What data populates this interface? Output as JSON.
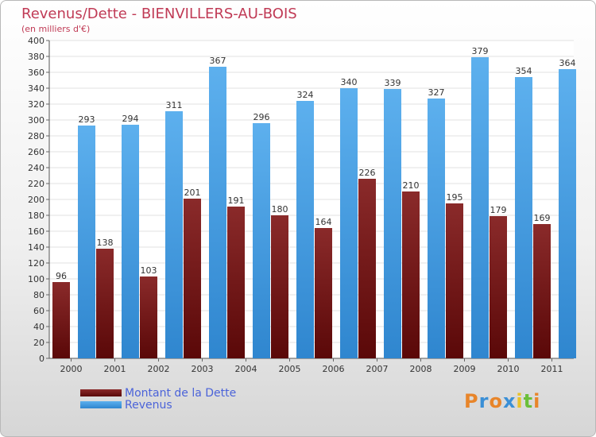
{
  "chart_data": {
    "type": "bar",
    "title": "Revenus/Dette - BIENVILLERS-AU-BOIS",
    "subtitle": "(en milliers d'€)",
    "categories": [
      "2000",
      "2001",
      "2002",
      "2003",
      "2004",
      "2005",
      "2006",
      "2007",
      "2008",
      "2009",
      "2010",
      "2011"
    ],
    "series": [
      {
        "name": "Montant de la Dette",
        "values": [
          96,
          138,
          103,
          201,
          191,
          180,
          164,
          226,
          210,
          195,
          179,
          169
        ],
        "color": "#7a1a1a"
      },
      {
        "name": "Revenus",
        "values": [
          293,
          294,
          311,
          367,
          296,
          324,
          340,
          339,
          327,
          379,
          354,
          364
        ],
        "color": "#4aa3e6"
      }
    ],
    "ylim": [
      0,
      400
    ],
    "ytick_step": 20,
    "yticks": [
      0,
      20,
      40,
      60,
      80,
      100,
      120,
      140,
      160,
      180,
      200,
      220,
      240,
      260,
      280,
      300,
      320,
      340,
      360,
      380,
      400
    ],
    "grid": true,
    "legend_position": "bottom-left"
  },
  "brand": {
    "text": "Proxiti",
    "letters": [
      {
        "char": "P",
        "color": "#e8852a"
      },
      {
        "char": "r",
        "color": "#3a8fd6"
      },
      {
        "char": "o",
        "color": "#e8852a"
      },
      {
        "char": "x",
        "color": "#3a8fd6"
      },
      {
        "char": "i",
        "color": "#e8c22a"
      },
      {
        "char": "t",
        "color": "#6bbf3a"
      },
      {
        "char": "i",
        "color": "#e8852a"
      }
    ]
  }
}
